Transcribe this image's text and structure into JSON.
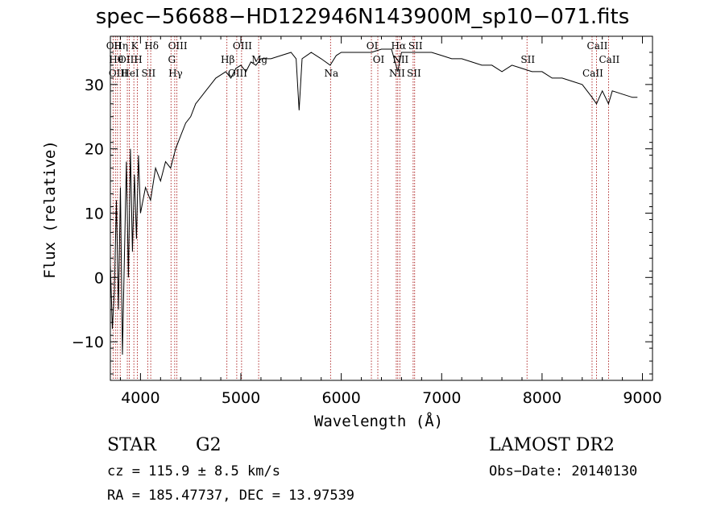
{
  "chart_data": {
    "type": "line",
    "title": "spec−56688−HD122946N143900M_sp10−071.fits",
    "xlabel": "Wavelength (Å)",
    "ylabel": "Flux (relative)",
    "xlim": [
      3700,
      9100
    ],
    "ylim": [
      -16,
      37.5
    ],
    "xticks": [
      4000,
      5000,
      6000,
      7000,
      8000,
      9000
    ],
    "yticks": [
      -10,
      0,
      10,
      20,
      30
    ],
    "grid": false,
    "series": [
      {
        "values_xy": [
          [
            3700,
            2
          ],
          [
            3720,
            -8
          ],
          [
            3740,
            -2
          ],
          [
            3760,
            12
          ],
          [
            3780,
            -5
          ],
          [
            3800,
            14
          ],
          [
            3820,
            -12
          ],
          [
            3840,
            3
          ],
          [
            3860,
            18
          ],
          [
            3880,
            0
          ],
          [
            3900,
            20
          ],
          [
            3920,
            4
          ],
          [
            3940,
            16
          ],
          [
            3960,
            6
          ],
          [
            3980,
            19
          ],
          [
            4000,
            10
          ],
          [
            4050,
            14
          ],
          [
            4100,
            12
          ],
          [
            4150,
            17
          ],
          [
            4200,
            15
          ],
          [
            4250,
            18
          ],
          [
            4300,
            17
          ],
          [
            4350,
            20
          ],
          [
            4400,
            22
          ],
          [
            4450,
            24
          ],
          [
            4500,
            25
          ],
          [
            4550,
            27
          ],
          [
            4600,
            28
          ],
          [
            4650,
            29
          ],
          [
            4700,
            30
          ],
          [
            4750,
            31
          ],
          [
            4800,
            31.5
          ],
          [
            4850,
            32
          ],
          [
            4900,
            31
          ],
          [
            4950,
            32.5
          ],
          [
            5000,
            33
          ],
          [
            5050,
            32
          ],
          [
            5100,
            33.5
          ],
          [
            5150,
            33
          ],
          [
            5200,
            34
          ],
          [
            5300,
            34
          ],
          [
            5400,
            34.5
          ],
          [
            5500,
            35
          ],
          [
            5550,
            34
          ],
          [
            5580,
            26
          ],
          [
            5610,
            34
          ],
          [
            5700,
            35
          ],
          [
            5800,
            34
          ],
          [
            5890,
            33
          ],
          [
            5950,
            34.5
          ],
          [
            6000,
            35
          ],
          [
            6100,
            35
          ],
          [
            6200,
            35
          ],
          [
            6300,
            35
          ],
          [
            6400,
            35.5
          ],
          [
            6500,
            35.5
          ],
          [
            6563,
            32
          ],
          [
            6600,
            35
          ],
          [
            6700,
            35
          ],
          [
            6800,
            35
          ],
          [
            6900,
            35
          ],
          [
            7000,
            34.5
          ],
          [
            7100,
            34
          ],
          [
            7200,
            34
          ],
          [
            7300,
            33.5
          ],
          [
            7400,
            33
          ],
          [
            7500,
            33
          ],
          [
            7600,
            32
          ],
          [
            7700,
            33
          ],
          [
            7800,
            32.5
          ],
          [
            7900,
            32
          ],
          [
            8000,
            32
          ],
          [
            8100,
            31
          ],
          [
            8200,
            31
          ],
          [
            8300,
            30.5
          ],
          [
            8400,
            30
          ],
          [
            8498,
            28
          ],
          [
            8542,
            27
          ],
          [
            8600,
            29
          ],
          [
            8662,
            27
          ],
          [
            8700,
            29
          ],
          [
            8800,
            28.5
          ],
          [
            8900,
            28
          ],
          [
            8950,
            28
          ]
        ]
      }
    ],
    "line_markers": [
      {
        "x": 3727,
        "label": "OII"
      },
      {
        "x": 3750,
        "label": "Hθ"
      },
      {
        "x": 3771,
        "label": "OIII"
      },
      {
        "x": 3798,
        "label": "Hη"
      },
      {
        "x": 3869,
        "label": "OIII"
      },
      {
        "x": 3889,
        "label": "HeI"
      },
      {
        "x": 3934,
        "label": "K"
      },
      {
        "x": 3969,
        "label": "H"
      },
      {
        "x": 4072,
        "label": "SII"
      },
      {
        "x": 4102,
        "label": "Hδ"
      },
      {
        "x": 4304,
        "label": "G"
      },
      {
        "x": 4341,
        "label": "Hγ"
      },
      {
        "x": 4363,
        "label": "OIII"
      },
      {
        "x": 4861,
        "label": "Hβ"
      },
      {
        "x": 4959,
        "label": "OIII"
      },
      {
        "x": 5007,
        "label": "OIII"
      },
      {
        "x": 5177,
        "label": "Mg"
      },
      {
        "x": 5893,
        "label": "Na"
      },
      {
        "x": 6300,
        "label": "OI"
      },
      {
        "x": 6364,
        "label": "OI"
      },
      {
        "x": 6548,
        "label": "NII"
      },
      {
        "x": 6563,
        "label": "Hα"
      },
      {
        "x": 6583,
        "label": "NII"
      },
      {
        "x": 6716,
        "label": "SII"
      },
      {
        "x": 6731,
        "label": "SII"
      },
      {
        "x": 7850,
        "label": "SII"
      },
      {
        "x": 8498,
        "label": "CaII"
      },
      {
        "x": 8542,
        "label": "CaII"
      },
      {
        "x": 8662,
        "label": "CaII"
      }
    ]
  },
  "info": {
    "object_type": "STAR",
    "subclass": "G2",
    "survey": "LAMOST DR2",
    "cz": "cz = 115.9 ± 8.5 km/s",
    "obs_date": "Obs−Date: 20140130",
    "radec": "RA = 185.47737, DEC =  13.97539"
  },
  "colors": {
    "spectrum": "#000000",
    "marker_line": "#a00000",
    "axis": "#000000"
  }
}
